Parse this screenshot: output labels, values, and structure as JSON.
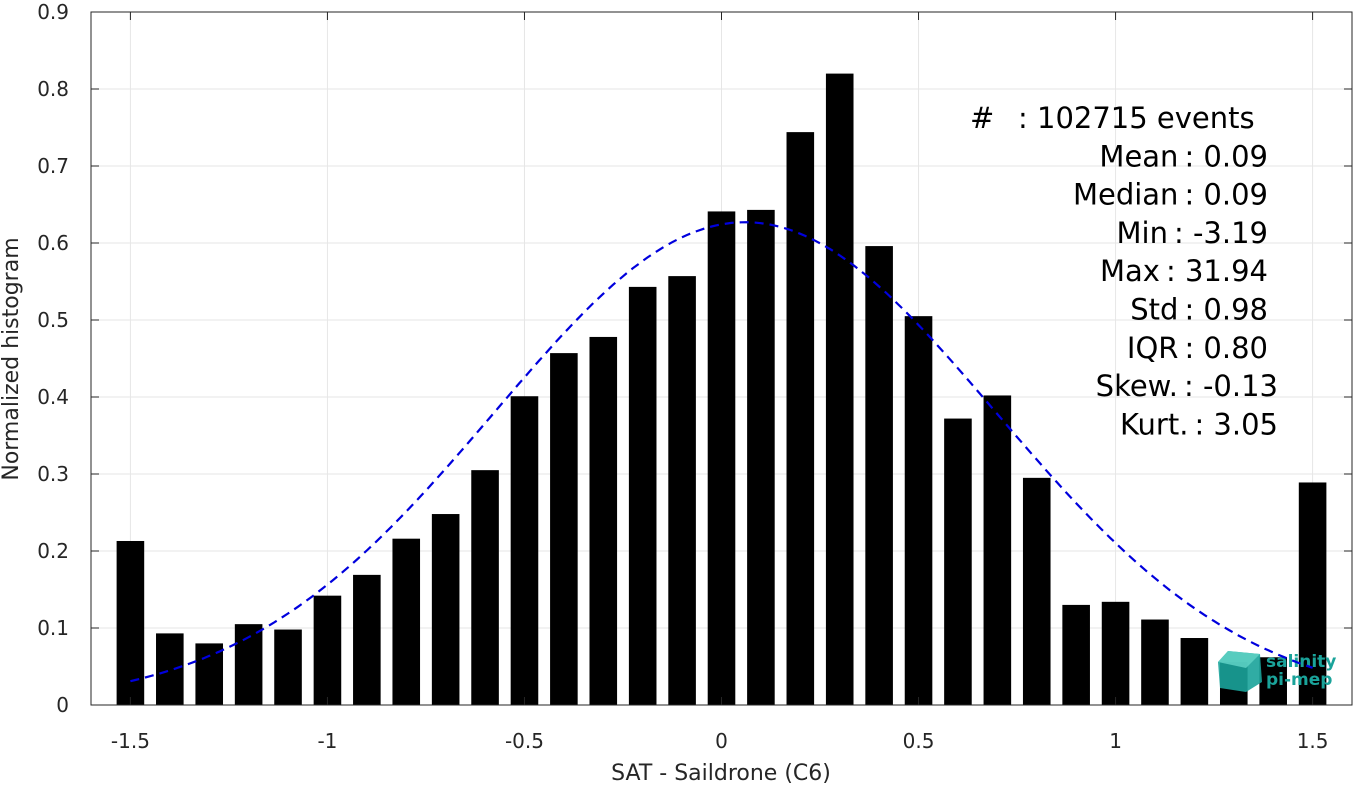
{
  "chart_data": {
    "type": "bar",
    "title": "",
    "xlabel": "SAT - Saildrone (C6)",
    "ylabel": "Normalized histogram",
    "xlim": [
      -1.6,
      1.6
    ],
    "ylim": [
      0,
      0.9
    ],
    "xticks": [
      -1.5,
      -1,
      -0.5,
      0,
      0.5,
      1,
      1.5
    ],
    "xtick_labels": [
      "-1.5",
      "-1",
      "-0.5",
      "0",
      "0.5",
      "1",
      "1.5"
    ],
    "yticks": [
      0,
      0.1,
      0.2,
      0.3,
      0.4,
      0.5,
      0.6,
      0.7,
      0.8,
      0.9
    ],
    "ytick_labels": [
      "0",
      "0.1",
      "0.2",
      "0.3",
      "0.4",
      "0.5",
      "0.6",
      "0.7",
      "0.8",
      "0.9"
    ],
    "grid": true,
    "bar_color": "#000000",
    "bin_width": 0.1,
    "x": [
      -1.5,
      -1.4,
      -1.3,
      -1.2,
      -1.1,
      -1.0,
      -0.9,
      -0.8,
      -0.7,
      -0.6,
      -0.5,
      -0.4,
      -0.3,
      -0.2,
      -0.1,
      0.0,
      0.1,
      0.2,
      0.3,
      0.4,
      0.5,
      0.6,
      0.7,
      0.8,
      0.9,
      1.0,
      1.1,
      1.2,
      1.3,
      1.4,
      1.5
    ],
    "values": [
      0.213,
      0.093,
      0.08,
      0.105,
      0.098,
      0.142,
      0.169,
      0.216,
      0.248,
      0.305,
      0.401,
      0.457,
      0.478,
      0.543,
      0.557,
      0.641,
      0.643,
      0.744,
      0.82,
      0.596,
      0.505,
      0.372,
      0.402,
      0.295,
      0.13,
      0.134,
      0.111,
      0.087,
      0.056,
      0.062,
      0.289
    ],
    "fit_curve": {
      "style": "dashed",
      "color": "#0000dd",
      "mean": 0.06,
      "std": 0.636,
      "peak": 0.627,
      "x_range": [
        -1.5,
        1.5
      ]
    },
    "stats": [
      {
        "label": "#",
        "value": ": 102715 events"
      },
      {
        "label": "Mean",
        "value": ": 0.09"
      },
      {
        "label": "Median",
        "value": ": 0.09"
      },
      {
        "label": "Min",
        "value": ": -3.19"
      },
      {
        "label": "Max",
        "value": ": 31.94"
      },
      {
        "label": "Std",
        "value": ": 0.98"
      },
      {
        "label": "IQR",
        "value": ": 0.80"
      },
      {
        "label": "Skew.",
        "value": ": -0.13"
      },
      {
        "label": "Kurt.",
        "value": ": 3.05"
      }
    ]
  },
  "logo": {
    "line1": "salinity",
    "line2": "pi-mep",
    "color": "#1aa39a"
  }
}
